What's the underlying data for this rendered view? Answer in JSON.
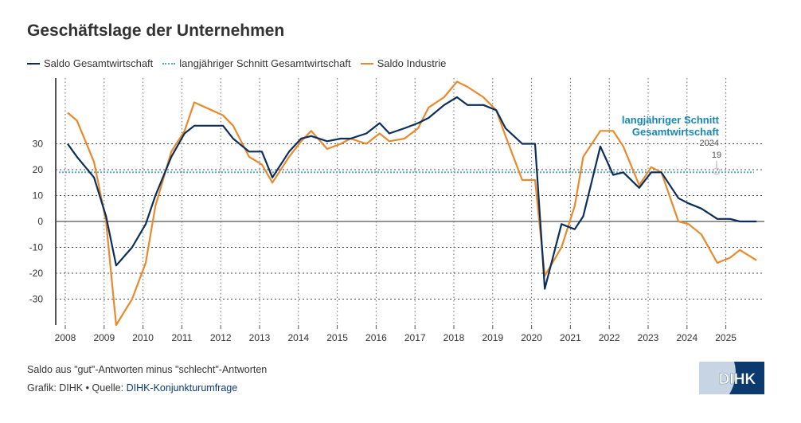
{
  "chart_data": {
    "type": "line",
    "title": "Geschäftslage der Unternehmen",
    "xlabel": "",
    "ylabel": "",
    "xlim": [
      2007.95,
      2026.0
    ],
    "ylim": [
      -40,
      55
    ],
    "x_ticks": [
      "2008",
      "2009",
      "2010",
      "2011",
      "2012",
      "2013",
      "2014",
      "2015",
      "2016",
      "2017",
      "2018",
      "2019",
      "2020",
      "2021",
      "2022",
      "2023",
      "2024",
      "2025"
    ],
    "y_ticks": [
      -30,
      -20,
      -10,
      0,
      10,
      20,
      30
    ],
    "grid": true,
    "legend_position": "top-left",
    "x": [
      2008.06,
      2008.3,
      2008.74,
      2009.05,
      2009.31,
      2009.72,
      2010.07,
      2010.32,
      2010.73,
      2011.07,
      2011.32,
      2012.06,
      2012.32,
      2012.73,
      2013.06,
      2013.33,
      2013.76,
      2014.07,
      2014.33,
      2014.74,
      2015.09,
      2015.34,
      2015.75,
      2016.09,
      2016.34,
      2016.73,
      2017.08,
      2017.35,
      2017.75,
      2018.08,
      2018.35,
      2018.76,
      2019.09,
      2019.33,
      2019.76,
      2020.09,
      2020.34,
      2020.77,
      2021.11,
      2021.33,
      2021.77,
      2022.1,
      2022.36,
      2022.77,
      2023.08,
      2023.34,
      2023.78,
      2024.04,
      2024.37,
      2024.78,
      2025.11,
      2025.36,
      2025.79
    ],
    "series": [
      {
        "name": "Saldo Gesamtwirtschaft",
        "color": "#0b2d5b",
        "style": "solid",
        "values": [
          30,
          25,
          17,
          2,
          -17,
          -10,
          -1,
          10,
          25,
          34,
          37,
          37,
          32,
          27,
          27,
          17,
          27,
          32,
          33,
          31,
          32,
          32,
          34,
          38,
          34,
          36,
          38,
          40,
          45,
          48,
          45,
          45,
          43,
          36,
          30,
          30,
          -26,
          -1,
          -3,
          2,
          29,
          18,
          19,
          13,
          19,
          19,
          9,
          7,
          5,
          1,
          1,
          0,
          0
        ]
      },
      {
        "name": "Saldo Industrie",
        "color": "#e8892b",
        "style": "solid",
        "values": [
          42,
          39,
          23,
          0,
          -40,
          -30,
          -16,
          6,
          27,
          35,
          46,
          41,
          37,
          25,
          22,
          15,
          25,
          31,
          35,
          28,
          30,
          32,
          30,
          34,
          31,
          32,
          36,
          44,
          48,
          54,
          52,
          48,
          43,
          33,
          16,
          16,
          -21,
          -10,
          6,
          25,
          35,
          35,
          29,
          14,
          21,
          19,
          0,
          -1,
          -5,
          -16,
          -14,
          -11,
          -15
        ]
      },
      {
        "name": "langjähriger Schnitt Gesamtwirtschaft",
        "color": "#4fb0c6",
        "style": "dotted",
        "constant": 19
      }
    ],
    "annotation": {
      "line1": "langjähriger Schnitt",
      "line2": "Gesamtwirtschaft",
      "year": "2024",
      "value": "19"
    }
  },
  "footer": {
    "note": "Saldo aus \"gut\"-Antworten minus \"schlecht\"-Antworten",
    "credit_prefix": "Grafik: DIHK • Quelle: ",
    "source": "DIHK-Konjunkturumfrage",
    "logo_text": "DIHK"
  }
}
